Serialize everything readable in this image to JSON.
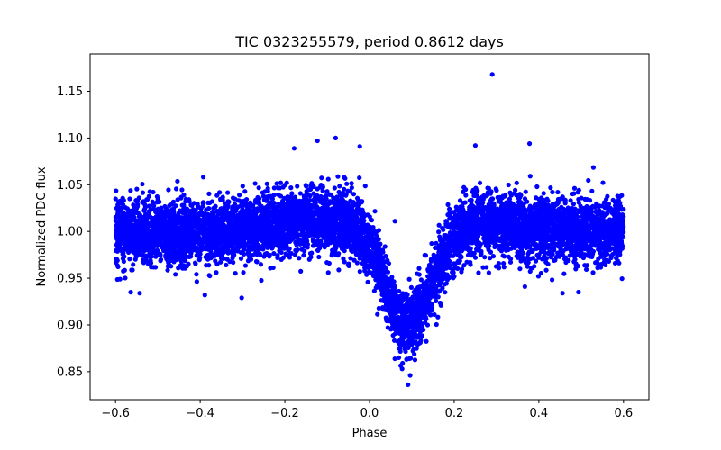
{
  "chart_data": {
    "type": "scatter",
    "title": "TIC 0323255579, period 0.8612 days",
    "xlabel": "Phase",
    "ylabel": "Normalized PDC flux",
    "xlim": [
      -0.66,
      0.66
    ],
    "ylim": [
      0.82,
      1.19
    ],
    "xticks": [
      -0.6,
      -0.4,
      -0.2,
      0.0,
      0.2,
      0.4,
      0.6
    ],
    "xtick_labels": [
      "−0.6",
      "−0.4",
      "−0.2",
      "0.0",
      "0.2",
      "0.4",
      "0.6"
    ],
    "yticks": [
      0.85,
      0.9,
      0.95,
      1.0,
      1.05,
      1.1,
      1.15
    ],
    "ytick_labels": [
      "0.85",
      "0.90",
      "0.95",
      "1.00",
      "1.05",
      "1.10",
      "1.15"
    ],
    "grid": false,
    "marker_color": "#0000ff",
    "series": [
      {
        "name": "PDC flux",
        "phase_range": [
          -0.6,
          0.6
        ],
        "baseline_flux": 1.0,
        "baseline_scatter": 0.02,
        "eclipse_center_phase": 0.09,
        "eclipse_depth": 0.1,
        "eclipse_width_ingress": 0.052,
        "eclipse_width_egress": 0.058,
        "points": [
          {
            "x": 0.29,
            "y": 1.168
          },
          {
            "x": 0.378,
            "y": 1.094
          },
          {
            "x": 0.25,
            "y": 1.092
          },
          {
            "x": -0.123,
            "y": 1.097
          },
          {
            "x": -0.08,
            "y": 1.1
          },
          {
            "x": -0.178,
            "y": 1.089
          },
          {
            "x": -0.023,
            "y": 1.091
          },
          {
            "x": 0.091,
            "y": 0.836
          },
          {
            "x": 0.077,
            "y": 0.853
          },
          {
            "x": 0.096,
            "y": 0.846
          },
          {
            "x": -0.543,
            "y": 0.934
          },
          {
            "x": -0.389,
            "y": 0.932
          },
          {
            "x": -0.302,
            "y": 0.929
          },
          {
            "x": 0.456,
            "y": 0.934
          },
          {
            "x": 0.367,
            "y": 0.941
          },
          {
            "x": 0.06,
            "y": 1.011
          }
        ]
      }
    ]
  }
}
